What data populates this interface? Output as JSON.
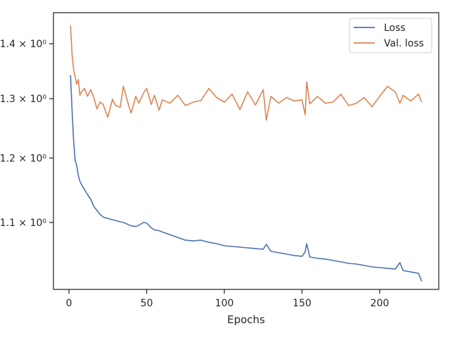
{
  "chart_data": {
    "type": "line",
    "xlabel": "Epochs",
    "ylabel": "",
    "xlim": [
      -10,
      238
    ],
    "ylim": [
      1.005,
      1.46
    ],
    "yscale": "log",
    "xticks": [
      0,
      50,
      100,
      150,
      200
    ],
    "yticks": [
      {
        "value": 1.1,
        "label": "1.1 × 10⁰"
      },
      {
        "value": 1.2,
        "label": "1.2 × 10⁰"
      },
      {
        "value": 1.3,
        "label": "1.3 × 10⁰"
      },
      {
        "value": 1.4,
        "label": "1.4 × 10⁰"
      }
    ],
    "grid": false,
    "legend_position": "top-right",
    "series": [
      {
        "name": "Loss",
        "color": "#4c72b0",
        "x": [
          1,
          2,
          3,
          4,
          5,
          6,
          7,
          8,
          10,
          12,
          14,
          16,
          18,
          20,
          22,
          25,
          28,
          30,
          33,
          35,
          38,
          40,
          43,
          45,
          48,
          50,
          53,
          55,
          58,
          60,
          65,
          70,
          75,
          80,
          85,
          90,
          95,
          100,
          105,
          110,
          115,
          120,
          125,
          127,
          130,
          135,
          140,
          145,
          150,
          152,
          153,
          155,
          160,
          165,
          170,
          175,
          180,
          185,
          190,
          195,
          200,
          205,
          210,
          213,
          215,
          220,
          225,
          227
        ],
        "values": [
          1.342,
          1.28,
          1.228,
          1.196,
          1.188,
          1.172,
          1.163,
          1.158,
          1.15,
          1.142,
          1.135,
          1.124,
          1.118,
          1.112,
          1.108,
          1.106,
          1.104,
          1.103,
          1.101,
          1.1,
          1.097,
          1.095,
          1.094,
          1.096,
          1.1,
          1.099,
          1.092,
          1.089,
          1.088,
          1.086,
          1.082,
          1.078,
          1.074,
          1.073,
          1.074,
          1.071,
          1.069,
          1.066,
          1.065,
          1.064,
          1.063,
          1.062,
          1.061,
          1.068,
          1.058,
          1.056,
          1.054,
          1.052,
          1.051,
          1.057,
          1.069,
          1.05,
          1.048,
          1.047,
          1.045,
          1.043,
          1.041,
          1.04,
          1.038,
          1.036,
          1.035,
          1.034,
          1.033,
          1.042,
          1.031,
          1.029,
          1.027,
          1.016
        ]
      },
      {
        "name": "Val. loss",
        "color": "#dd8452",
        "x": [
          1,
          2,
          3,
          4,
          5,
          6,
          7,
          8,
          10,
          12,
          14,
          16,
          18,
          20,
          22,
          25,
          28,
          30,
          33,
          35,
          38,
          40,
          43,
          45,
          48,
          50,
          53,
          55,
          58,
          60,
          65,
          70,
          75,
          80,
          85,
          90,
          95,
          100,
          105,
          110,
          115,
          120,
          125,
          127,
          130,
          135,
          140,
          145,
          150,
          152,
          153,
          155,
          160,
          165,
          170,
          175,
          180,
          185,
          190,
          195,
          200,
          205,
          210,
          213,
          215,
          220,
          225,
          227
        ],
        "values": [
          1.435,
          1.38,
          1.352,
          1.338,
          1.326,
          1.334,
          1.306,
          1.312,
          1.318,
          1.304,
          1.316,
          1.302,
          1.282,
          1.294,
          1.29,
          1.268,
          1.299,
          1.288,
          1.285,
          1.322,
          1.292,
          1.275,
          1.304,
          1.292,
          1.31,
          1.318,
          1.29,
          1.306,
          1.28,
          1.298,
          1.292,
          1.306,
          1.288,
          1.294,
          1.297,
          1.318,
          1.302,
          1.294,
          1.308,
          1.281,
          1.312,
          1.289,
          1.316,
          1.263,
          1.304,
          1.292,
          1.302,
          1.296,
          1.298,
          1.272,
          1.33,
          1.291,
          1.304,
          1.292,
          1.294,
          1.308,
          1.288,
          1.292,
          1.302,
          1.286,
          1.304,
          1.322,
          1.312,
          1.292,
          1.306,
          1.296,
          1.308,
          1.294
        ]
      }
    ]
  }
}
